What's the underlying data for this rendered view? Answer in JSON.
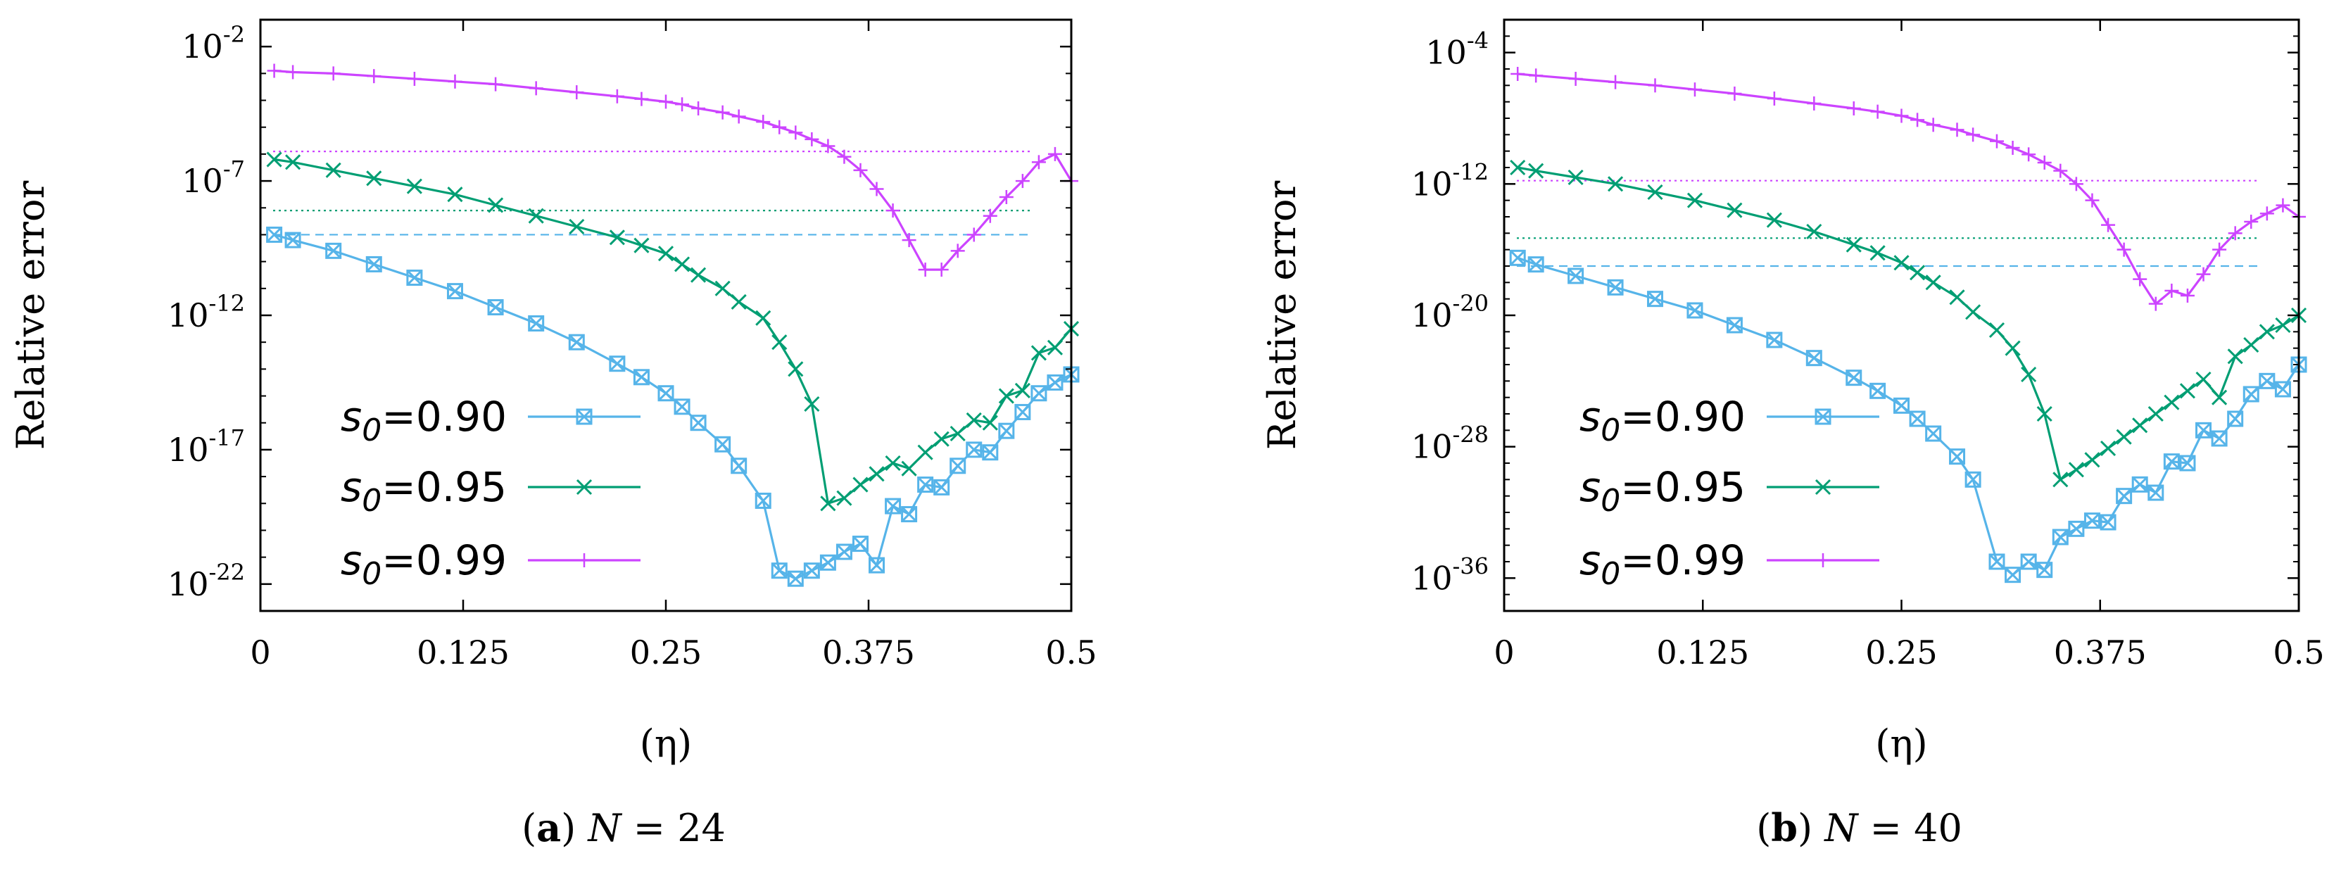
{
  "chart_data": [
    {
      "type": "line",
      "panel_label": "a",
      "caption_var": "N",
      "caption_rest": " = 24",
      "xlabel": "(η)",
      "ylabel": "Relative   error",
      "xlim": [
        0,
        0.5
      ],
      "ylim_log10": [
        -23,
        -1
      ],
      "x_ticks": [
        0,
        0.125,
        0.25,
        0.375,
        0.5
      ],
      "x_tick_labels": [
        "0",
        "0.125",
        "0.25",
        "0.375",
        "0.5"
      ],
      "y_tick_exponents": [
        -2,
        -7,
        -12,
        -17,
        -22
      ],
      "y_tick_base": "10",
      "y_tick_exp_labels": [
        "-2",
        "-7",
        "-12",
        "-17",
        "-22"
      ],
      "legend_position": "bottom-left",
      "series": [
        {
          "name_prefix": "s",
          "name_sub": "0",
          "name_value": "=0.90",
          "color": "#56b4e9",
          "marker": "box-star",
          "ref_log10": -9.0,
          "ref_style": "dashed",
          "x": [
            0.0085,
            0.02,
            0.045,
            0.07,
            0.095,
            0.12,
            0.145,
            0.17,
            0.195,
            0.22,
            0.235,
            0.25,
            0.26,
            0.27,
            0.285,
            0.295,
            0.31,
            0.32,
            0.33,
            0.34,
            0.35,
            0.36,
            0.37,
            0.38,
            0.39,
            0.4,
            0.41,
            0.42,
            0.43,
            0.44,
            0.45,
            0.46,
            0.47,
            0.48,
            0.49,
            0.5
          ],
          "y_log10": [
            -9.0,
            -9.2,
            -9.6,
            -10.1,
            -10.6,
            -11.1,
            -11.7,
            -12.3,
            -13.0,
            -13.8,
            -14.3,
            -14.9,
            -15.4,
            -16.0,
            -16.8,
            -17.6,
            -18.9,
            -21.5,
            -21.8,
            -21.5,
            -21.2,
            -20.8,
            -20.5,
            -21.3,
            -19.1,
            -19.4,
            -18.3,
            -18.4,
            -17.6,
            -17.0,
            -17.1,
            -16.3,
            -15.6,
            -14.9,
            -14.5,
            -14.2
          ]
        },
        {
          "name_prefix": "s",
          "name_sub": "0",
          "name_value": "=0.95",
          "color": "#009e73",
          "marker": "cross",
          "ref_log10": -8.1,
          "ref_style": "dotted",
          "x": [
            0.0085,
            0.02,
            0.045,
            0.07,
            0.095,
            0.12,
            0.145,
            0.17,
            0.195,
            0.22,
            0.235,
            0.25,
            0.26,
            0.27,
            0.285,
            0.295,
            0.31,
            0.32,
            0.33,
            0.34,
            0.35,
            0.36,
            0.37,
            0.38,
            0.39,
            0.4,
            0.41,
            0.42,
            0.43,
            0.44,
            0.45,
            0.46,
            0.47,
            0.48,
            0.49,
            0.5
          ],
          "y_log10": [
            -6.2,
            -6.3,
            -6.6,
            -6.9,
            -7.2,
            -7.5,
            -7.9,
            -8.3,
            -8.7,
            -9.1,
            -9.4,
            -9.7,
            -10.1,
            -10.5,
            -11.0,
            -11.5,
            -12.1,
            -13.0,
            -14.0,
            -15.3,
            -19.0,
            -18.8,
            -18.3,
            -17.9,
            -17.5,
            -17.7,
            -17.1,
            -16.6,
            -16.4,
            -15.9,
            -16.0,
            -15.0,
            -14.8,
            -13.4,
            -13.2,
            -12.5
          ]
        },
        {
          "name_prefix": "s",
          "name_sub": "0",
          "name_value": "=0.99",
          "color": "#cc44ff",
          "marker": "plus",
          "ref_log10": -5.9,
          "ref_style": "dotted",
          "x": [
            0.0085,
            0.02,
            0.045,
            0.07,
            0.095,
            0.12,
            0.145,
            0.17,
            0.195,
            0.22,
            0.235,
            0.25,
            0.26,
            0.27,
            0.285,
            0.295,
            0.31,
            0.32,
            0.33,
            0.34,
            0.35,
            0.36,
            0.37,
            0.38,
            0.39,
            0.4,
            0.41,
            0.42,
            0.43,
            0.44,
            0.45,
            0.46,
            0.47,
            0.48,
            0.49,
            0.5
          ],
          "y_log10": [
            -2.9,
            -2.95,
            -3.0,
            -3.1,
            -3.2,
            -3.3,
            -3.4,
            -3.55,
            -3.7,
            -3.85,
            -3.95,
            -4.05,
            -4.15,
            -4.3,
            -4.45,
            -4.6,
            -4.8,
            -5.0,
            -5.2,
            -5.45,
            -5.7,
            -6.1,
            -6.6,
            -7.3,
            -8.1,
            -9.2,
            -10.3,
            -10.3,
            -9.6,
            -9.0,
            -8.3,
            -7.6,
            -7.0,
            -6.3,
            -6.0,
            -7.0
          ]
        }
      ]
    },
    {
      "type": "line",
      "panel_label": "b",
      "caption_var": "N",
      "caption_rest": " = 40",
      "xlabel": "(η)",
      "ylabel": "Relative   error",
      "xlim": [
        0,
        0.5
      ],
      "ylim_log10": [
        -38,
        -2
      ],
      "x_ticks": [
        0,
        0.125,
        0.25,
        0.375,
        0.5
      ],
      "x_tick_labels": [
        "0",
        "0.125",
        "0.25",
        "0.375",
        "0.5"
      ],
      "y_tick_exponents": [
        -4,
        -12,
        -20,
        -28,
        -36
      ],
      "y_tick_base": "10",
      "y_tick_exp_labels": [
        "-4",
        "-12",
        "-20",
        "-28",
        "-36"
      ],
      "legend_position": "bottom-left",
      "series": [
        {
          "name_prefix": "s",
          "name_sub": "0",
          "name_value": "=0.90",
          "color": "#56b4e9",
          "marker": "box-star",
          "ref_log10": -17.0,
          "ref_style": "dashed",
          "x": [
            0.0085,
            0.02,
            0.045,
            0.07,
            0.095,
            0.12,
            0.145,
            0.17,
            0.195,
            0.22,
            0.235,
            0.25,
            0.26,
            0.27,
            0.285,
            0.295,
            0.31,
            0.32,
            0.33,
            0.34,
            0.35,
            0.36,
            0.37,
            0.38,
            0.39,
            0.4,
            0.41,
            0.42,
            0.43,
            0.44,
            0.45,
            0.46,
            0.47,
            0.48,
            0.49,
            0.5
          ],
          "y_log10": [
            -16.5,
            -16.9,
            -17.6,
            -18.3,
            -19.0,
            -19.7,
            -20.6,
            -21.5,
            -22.6,
            -23.8,
            -24.6,
            -25.5,
            -26.3,
            -27.2,
            -28.6,
            -30.0,
            -35.0,
            -35.8,
            -35.0,
            -35.5,
            -33.5,
            -33.0,
            -32.5,
            -32.6,
            -31.0,
            -30.3,
            -30.8,
            -28.9,
            -29.0,
            -27.0,
            -27.5,
            -26.3,
            -24.8,
            -24.0,
            -24.5,
            -23.0
          ]
        },
        {
          "name_prefix": "s",
          "name_sub": "0",
          "name_value": "=0.95",
          "color": "#009e73",
          "marker": "cross",
          "ref_log10": -15.3,
          "ref_style": "dotted",
          "x": [
            0.0085,
            0.02,
            0.045,
            0.07,
            0.095,
            0.12,
            0.145,
            0.17,
            0.195,
            0.22,
            0.235,
            0.25,
            0.26,
            0.27,
            0.285,
            0.295,
            0.31,
            0.32,
            0.33,
            0.34,
            0.35,
            0.36,
            0.37,
            0.38,
            0.39,
            0.4,
            0.41,
            0.42,
            0.43,
            0.44,
            0.45,
            0.46,
            0.47,
            0.48,
            0.49,
            0.5
          ],
          "y_log10": [
            -11.0,
            -11.2,
            -11.6,
            -12.0,
            -12.5,
            -13.0,
            -13.6,
            -14.2,
            -14.9,
            -15.7,
            -16.2,
            -16.8,
            -17.4,
            -18.0,
            -18.9,
            -19.8,
            -20.9,
            -22.0,
            -23.6,
            -26.0,
            -30.0,
            -29.4,
            -28.8,
            -28.1,
            -27.4,
            -26.7,
            -26.0,
            -25.3,
            -24.6,
            -23.9,
            -25.0,
            -22.5,
            -21.8,
            -21.0,
            -20.6,
            -20.0
          ]
        },
        {
          "name_prefix": "s",
          "name_sub": "0",
          "name_value": "=0.99",
          "color": "#cc44ff",
          "marker": "plus",
          "ref_log10": -11.8,
          "ref_style": "dotted",
          "x": [
            0.0085,
            0.02,
            0.045,
            0.07,
            0.095,
            0.12,
            0.145,
            0.17,
            0.195,
            0.22,
            0.235,
            0.25,
            0.26,
            0.27,
            0.285,
            0.295,
            0.31,
            0.32,
            0.33,
            0.34,
            0.35,
            0.36,
            0.37,
            0.38,
            0.39,
            0.4,
            0.41,
            0.42,
            0.43,
            0.44,
            0.45,
            0.46,
            0.47,
            0.48,
            0.49,
            0.5
          ],
          "y_log10": [
            -5.3,
            -5.4,
            -5.6,
            -5.8,
            -6.0,
            -6.25,
            -6.5,
            -6.8,
            -7.1,
            -7.4,
            -7.6,
            -7.85,
            -8.1,
            -8.4,
            -8.7,
            -9.0,
            -9.4,
            -9.8,
            -10.2,
            -10.7,
            -11.2,
            -12.0,
            -13.0,
            -14.5,
            -16.0,
            -17.8,
            -19.3,
            -18.5,
            -18.8,
            -17.5,
            -16.0,
            -15.0,
            -14.3,
            -13.8,
            -13.3,
            -14.0
          ]
        }
      ]
    }
  ]
}
